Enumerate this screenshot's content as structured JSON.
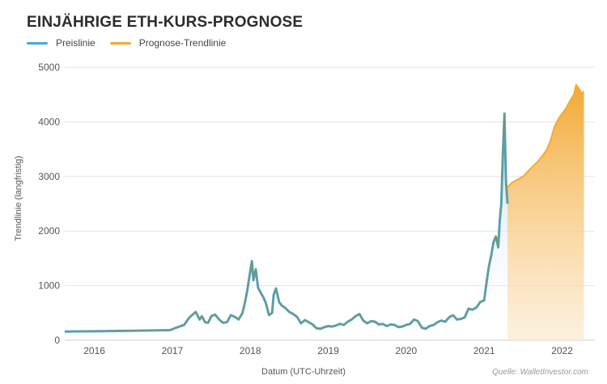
{
  "chart_data": {
    "type": "area",
    "title": "EINJÄHRIGE ETH-KURS-PROGNOSE",
    "xlabel": "Datum (UTC-Uhrzeit)",
    "ylabel": "Trendlinie (langfristig)",
    "source": "Quelle: WalletInvestor.com",
    "ylim": [
      0,
      5000
    ],
    "yticks": [
      0,
      1000,
      2000,
      3000,
      4000,
      5000
    ],
    "xlim": [
      2015.62,
      2022.42
    ],
    "xticks": [
      {
        "value": 2016,
        "label": "2016"
      },
      {
        "value": 2017,
        "label": "2017"
      },
      {
        "value": 2018,
        "label": "2018"
      },
      {
        "value": 2019,
        "label": "2019"
      },
      {
        "value": 2020,
        "label": "2020"
      },
      {
        "value": 2021,
        "label": "2021"
      },
      {
        "value": 2022,
        "label": "2022"
      }
    ],
    "grid": true,
    "legend_position": "top-left",
    "series": [
      {
        "name": "Preislinie",
        "color": "#4ba6dc",
        "trend_color": "#6f9a78",
        "x": [
          2015.62,
          2016.0,
          2016.5,
          2016.97,
          2017.05,
          2017.15,
          2017.22,
          2017.3,
          2017.35,
          2017.38,
          2017.42,
          2017.46,
          2017.5,
          2017.55,
          2017.6,
          2017.65,
          2017.7,
          2017.75,
          2017.8,
          2017.85,
          2017.9,
          2017.93,
          2017.96,
          2017.99,
          2018.02,
          2018.04,
          2018.07,
          2018.1,
          2018.13,
          2018.17,
          2018.2,
          2018.24,
          2018.28,
          2018.3,
          2018.33,
          2018.37,
          2018.4,
          2018.45,
          2018.5,
          2018.55,
          2018.6,
          2018.65,
          2018.7,
          2018.75,
          2018.8,
          2018.85,
          2018.9,
          2018.95,
          2019.0,
          2019.05,
          2019.1,
          2019.15,
          2019.2,
          2019.25,
          2019.3,
          2019.35,
          2019.4,
          2019.45,
          2019.5,
          2019.55,
          2019.6,
          2019.65,
          2019.7,
          2019.75,
          2019.8,
          2019.85,
          2019.9,
          2019.95,
          2020.0,
          2020.05,
          2020.1,
          2020.15,
          2020.2,
          2020.25,
          2020.3,
          2020.35,
          2020.4,
          2020.45,
          2020.5,
          2020.55,
          2020.6,
          2020.65,
          2020.7,
          2020.75,
          2020.8,
          2020.85,
          2020.9,
          2020.95,
          2021.0,
          2021.03,
          2021.06,
          2021.09,
          2021.12,
          2021.15,
          2021.18,
          2021.2,
          2021.22,
          2021.24,
          2021.26,
          2021.28,
          2021.3
        ],
        "y": [
          160,
          165,
          175,
          185,
          230,
          280,
          420,
          520,
          380,
          440,
          330,
          320,
          440,
          470,
          380,
          320,
          330,
          460,
          430,
          380,
          500,
          680,
          900,
          1180,
          1450,
          1100,
          1300,
          960,
          880,
          780,
          680,
          460,
          500,
          830,
          950,
          700,
          640,
          590,
          520,
          480,
          430,
          310,
          370,
          330,
          290,
          220,
          210,
          240,
          260,
          250,
          270,
          300,
          280,
          340,
          380,
          440,
          480,
          360,
          310,
          350,
          340,
          290,
          300,
          260,
          290,
          280,
          240,
          250,
          280,
          300,
          380,
          350,
          230,
          210,
          260,
          280,
          330,
          360,
          340,
          420,
          460,
          380,
          390,
          420,
          580,
          560,
          600,
          700,
          730,
          1050,
          1350,
          1550,
          1800,
          1900,
          1700,
          2200,
          2500,
          3400,
          4150,
          2900,
          2500
        ]
      },
      {
        "name": "Prognose-Trendlinie",
        "color": "#f3a934",
        "x": [
          2021.3,
          2021.35,
          2021.4,
          2021.5,
          2021.6,
          2021.7,
          2021.8,
          2021.85,
          2021.9,
          2021.95,
          2022.0,
          2022.05,
          2022.1,
          2022.15,
          2022.18,
          2022.22,
          2022.25,
          2022.28
        ],
        "y": [
          2800,
          2880,
          2920,
          3000,
          3150,
          3290,
          3480,
          3650,
          3900,
          4050,
          4150,
          4250,
          4380,
          4500,
          4680,
          4600,
          4520,
          4560
        ]
      }
    ]
  }
}
